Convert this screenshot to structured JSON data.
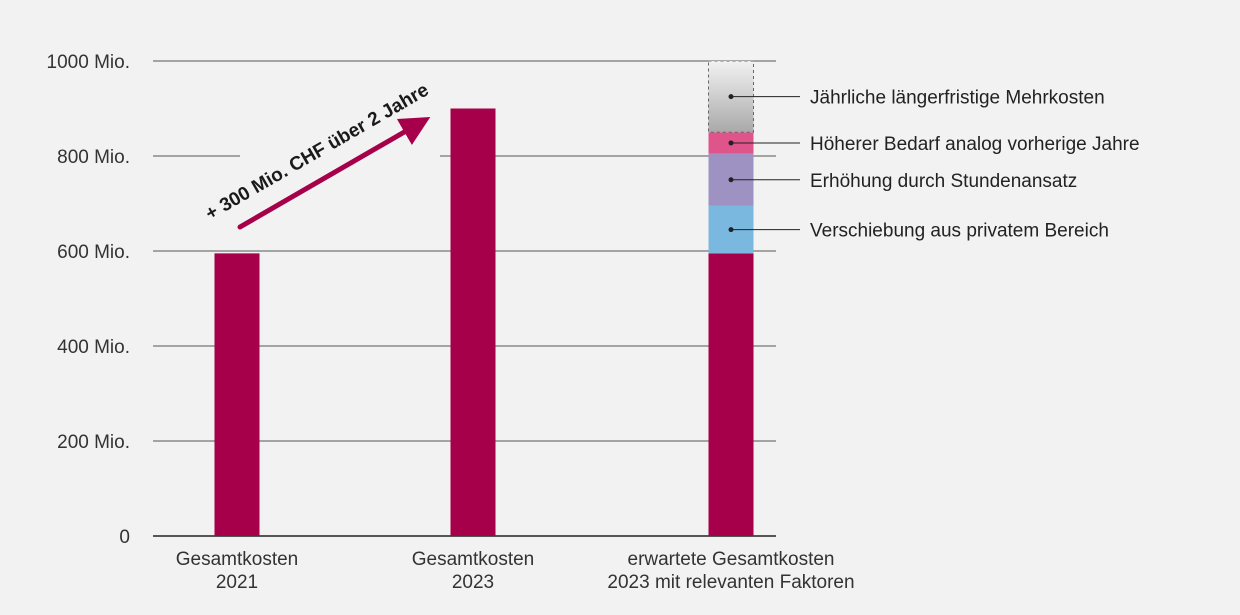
{
  "chart_data": {
    "type": "bar",
    "stacked": true,
    "title": "",
    "xlabel": "",
    "ylabel": "",
    "ylim": [
      0,
      1000
    ],
    "y_ticks": [
      0,
      200,
      400,
      600,
      800,
      1000
    ],
    "y_tick_labels": [
      "0",
      "200 Mio.",
      "400 Mio.",
      "600 Mio.",
      "800 Mio.",
      "1000 Mio."
    ],
    "grid": true,
    "categories": [
      [
        "Gesamtkosten",
        "2021"
      ],
      [
        "Gesamtkosten",
        "2023"
      ],
      [
        "erwartete  Gesamtkosten",
        "2023 mit relevanten Faktoren"
      ]
    ],
    "series": [
      {
        "name": "",
        "color": "#a6004b",
        "values": [
          595,
          900,
          595
        ]
      },
      {
        "name": "Verschiebung aus privatem Bereich",
        "color": "#7ab8e0",
        "values": [
          0,
          0,
          100
        ]
      },
      {
        "name": "Erhöhung durch Stundenansatz",
        "color": "#9e92c3",
        "values": [
          0,
          0,
          110
        ]
      },
      {
        "name": "Höherer Bedarf analog vorherige Jahre",
        "color": "#e0548c",
        "values": [
          0,
          0,
          45
        ]
      },
      {
        "name": "Jährliche längerfristige Mehrkosten",
        "color": "#c4c4c4",
        "values": [
          0,
          0,
          150
        ],
        "style": "gradient-dashed"
      }
    ],
    "legend_placement": "right",
    "annotation": {
      "text": "+ 300 Mio. CHF über 2 Jahre",
      "color": "#a6004b",
      "from_category": 0,
      "to_category": 1
    }
  }
}
